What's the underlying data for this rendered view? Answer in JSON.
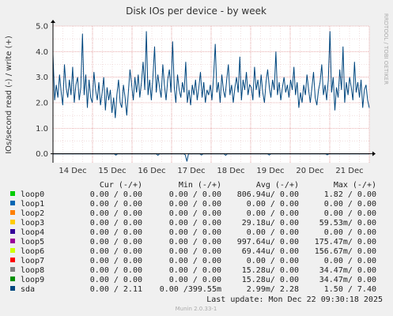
{
  "chart_data": {
    "type": "line",
    "title": "Disk IOs per device - by week",
    "ylabel": "IOs/second read (-) / write (+)",
    "side_label": "RRDTOOL / TOBI OETIKER",
    "ylim": [
      -0.35,
      5.0
    ],
    "yticks": [
      "0.0",
      "1.0",
      "2.0",
      "3.0",
      "4.0",
      "5.0"
    ],
    "ytick_values": [
      0,
      1,
      2,
      3,
      4,
      5
    ],
    "x_tick_labels": [
      "14 Dec",
      "15 Dec",
      "16 Dec",
      "17 Dec",
      "18 Dec",
      "19 Dec",
      "20 Dec",
      "21 Dec"
    ],
    "x_range_hours": [
      0,
      192
    ],
    "x_tick_hours": [
      12,
      36,
      60,
      84,
      108,
      132,
      156,
      180
    ],
    "grid": true,
    "series": [
      {
        "name": "sda",
        "color": "#00467e",
        "write_points_every_2h": [
          3.9,
          2.1,
          2.7,
          2.2,
          3.1,
          2.4,
          1.9,
          3.5,
          2.6,
          2.2,
          2.9,
          2.3,
          3.4,
          2.0,
          2.7,
          3.0,
          2.1,
          2.6,
          4.7,
          2.3,
          3.1,
          1.8,
          2.9,
          2.2,
          2.0,
          3.2,
          2.5,
          2.1,
          2.8,
          1.9,
          2.4,
          3.0,
          1.7,
          2.6,
          2.1,
          2.5,
          1.6,
          2.2,
          1.4,
          2.3,
          2.9,
          2.0,
          1.8,
          2.7,
          2.2,
          1.5,
          2.4,
          3.3,
          2.7,
          2.1,
          3.0,
          2.4,
          3.1,
          2.2,
          2.8,
          3.6,
          2.5,
          4.8,
          2.3,
          2.9,
          2.1,
          3.0,
          4.2,
          2.4,
          3.1,
          2.6,
          2.2,
          3.5,
          2.7,
          2.1,
          2.9,
          3.3,
          2.4,
          4.4,
          2.6,
          2.0,
          3.1,
          2.5,
          2.2,
          2.8,
          2.4,
          3.6,
          2.0,
          2.5,
          1.9,
          2.7,
          2.3,
          2.9,
          2.1,
          2.6,
          3.2,
          2.2,
          2.8,
          2.0,
          2.5,
          2.3,
          2.7,
          2.1,
          3.0,
          4.3,
          2.4,
          2.8,
          2.0,
          3.1,
          2.5,
          2.2,
          2.9,
          3.5,
          2.3,
          2.7,
          2.0,
          2.6,
          3.0,
          2.4,
          3.8,
          2.1,
          2.9,
          2.5,
          3.2,
          2.3,
          2.7,
          2.6,
          2.1,
          3.4,
          2.5,
          2.9,
          2.2,
          3.1,
          2.4,
          2.0,
          2.8,
          3.3,
          2.6,
          2.2,
          2.9,
          2.5,
          4.0,
          2.3,
          2.8,
          2.1,
          2.6,
          3.0,
          2.4,
          2.7,
          2.2,
          2.9,
          2.5,
          3.4,
          2.3,
          2.8,
          1.8,
          2.4,
          2.0,
          2.7,
          2.3,
          3.1,
          2.5,
          2.0,
          2.6,
          3.2,
          2.2,
          1.9,
          2.5,
          2.8,
          3.5,
          2.3,
          2.7,
          2.1,
          2.9,
          4.8,
          2.4,
          3.0,
          1.7,
          2.6,
          2.2,
          3.3,
          2.5,
          4.2,
          2.0,
          2.8,
          2.3,
          3.0,
          2.6,
          2.1,
          3.6,
          2.4,
          2.8,
          2.2,
          2.9,
          1.8,
          2.5,
          2.7,
          2.1,
          1.8
        ],
        "read_points_every_2h": [
          0,
          0,
          0,
          0,
          0,
          0,
          0,
          0,
          0,
          0,
          0,
          0,
          0,
          0,
          0,
          0,
          0,
          0,
          0,
          0,
          0,
          0,
          0,
          0,
          0,
          0,
          0,
          0,
          0,
          0,
          0,
          0,
          0,
          0,
          0,
          0,
          0,
          0,
          0,
          -0.05,
          0,
          0,
          0,
          0,
          0,
          0,
          0,
          0,
          0,
          0,
          0,
          0,
          0,
          0,
          0,
          0,
          0,
          0,
          0,
          0,
          0,
          0,
          0,
          0,
          0,
          -0.06,
          0,
          0,
          0,
          0,
          0,
          0,
          0,
          0,
          0,
          0,
          0,
          0,
          0,
          0,
          0,
          0,
          -0.04,
          -0.3,
          0,
          0,
          0,
          0,
          0,
          0,
          0,
          0,
          -0.05,
          0,
          0,
          0,
          0,
          0,
          0,
          0,
          0,
          0,
          0,
          0,
          0,
          0,
          0,
          -0.06,
          0,
          0,
          0,
          0,
          0,
          0,
          0,
          0,
          0,
          0,
          0,
          0,
          0,
          0,
          0,
          0,
          0,
          0,
          0,
          0,
          0,
          0,
          0,
          0,
          0,
          0,
          -0.05,
          0,
          0,
          0,
          0,
          0,
          0,
          0,
          0,
          0,
          0,
          0,
          0,
          0,
          0,
          0,
          0,
          0,
          0,
          0,
          0,
          0,
          0,
          0,
          0,
          0,
          0,
          0,
          0,
          0,
          0,
          0,
          0,
          0,
          0,
          0,
          -0.04,
          0,
          0,
          0,
          0,
          0,
          0,
          0,
          0,
          0,
          0,
          0,
          0,
          0,
          0,
          0,
          0,
          0,
          0,
          0,
          0,
          0,
          0,
          0,
          0,
          0,
          0
        ]
      }
    ]
  },
  "legend": {
    "headers": {
      "cur": "Cur (-/+)",
      "min": "Min (-/+)",
      "avg": "Avg (-/+)",
      "max": "Max (-/+)"
    },
    "rows": [
      {
        "name": "loop0",
        "color": "#00cc00",
        "cur": "0.00 /  0.00",
        "min": "0.00 /  0.00",
        "avg": "806.94u/  0.00",
        "max": "1.82 /  0.00"
      },
      {
        "name": "loop1",
        "color": "#0066b3",
        "cur": "0.00 /  0.00",
        "min": "0.00 /  0.00",
        "avg": "0.00 /  0.00",
        "max": "0.00 /  0.00"
      },
      {
        "name": "loop2",
        "color": "#ff8000",
        "cur": "0.00 /  0.00",
        "min": "0.00 /  0.00",
        "avg": "0.00 /  0.00",
        "max": "0.00 /  0.00"
      },
      {
        "name": "loop3",
        "color": "#ffcc00",
        "cur": "0.00 /  0.00",
        "min": "0.00 /  0.00",
        "avg": "29.18u/  0.00",
        "max": "59.53m/  0.00"
      },
      {
        "name": "loop4",
        "color": "#330099",
        "cur": "0.00 /  0.00",
        "min": "0.00 /  0.00",
        "avg": "0.00 /  0.00",
        "max": "0.00 /  0.00"
      },
      {
        "name": "loop5",
        "color": "#990099",
        "cur": "0.00 /  0.00",
        "min": "0.00 /  0.00",
        "avg": "997.64u/  0.00",
        "max": "175.47m/  0.00"
      },
      {
        "name": "loop6",
        "color": "#ccff00",
        "cur": "0.00 /  0.00",
        "min": "0.00 /  0.00",
        "avg": "69.44u/  0.00",
        "max": "156.67m/  0.00"
      },
      {
        "name": "loop7",
        "color": "#ff0000",
        "cur": "0.00 /  0.00",
        "min": "0.00 /  0.00",
        "avg": "0.00 /  0.00",
        "max": "0.00 /  0.00"
      },
      {
        "name": "loop8",
        "color": "#808080",
        "cur": "0.00 /  0.00",
        "min": "0.00 /  0.00",
        "avg": "15.28u/  0.00",
        "max": "34.47m/  0.00"
      },
      {
        "name": "loop9",
        "color": "#008f00",
        "cur": "0.00 /  0.00",
        "min": "0.00 /  0.00",
        "avg": "15.28u/  0.00",
        "max": "34.47m/  0.00"
      },
      {
        "name": "sda",
        "color": "#00467e",
        "cur": "0.00 /  2.11",
        "min": "0.00 /399.55m",
        "avg": "2.99m/  2.28",
        "max": "1.50 /  7.40"
      }
    ]
  },
  "footer": {
    "last_update": "Last update:  Mon Dec 22 09:30:18 2025",
    "version": "Munin 2.0.33-1"
  }
}
